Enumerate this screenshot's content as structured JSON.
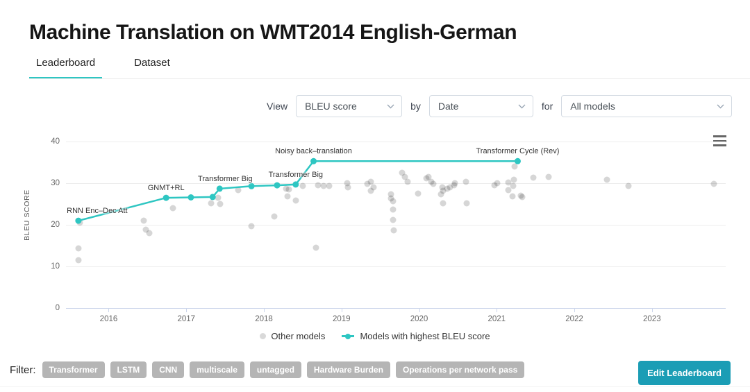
{
  "page": {
    "title": "Machine Translation on WMT2014 English-German"
  },
  "tabs": [
    {
      "label": "Leaderboard",
      "active": true
    },
    {
      "label": "Dataset",
      "active": false
    }
  ],
  "controls": {
    "view_label": "View",
    "view_value": "BLEU score",
    "by_label": "by",
    "by_value": "Date",
    "for_label": "for",
    "for_value": "All models"
  },
  "chart_data": {
    "type": "scatter",
    "title": "",
    "xlabel": "",
    "ylabel": "BLEU SCORE",
    "xlim": [
      2015.45,
      2023.95
    ],
    "ylim": [
      0,
      40
    ],
    "yticks": [
      0,
      10,
      20,
      30,
      40
    ],
    "xticks": [
      2016,
      2017,
      2018,
      2019,
      2020,
      2021,
      2022,
      2023
    ],
    "grid": true,
    "legend_position": "bottom-center",
    "menu_icon": "hamburger-icon",
    "series": [
      {
        "name": "Models with highest BLEU score",
        "type": "line+scatter",
        "color": "#2ec6c2",
        "points": [
          {
            "x": 2015.61,
            "y": 20.9,
            "label": "RNN Enc–Dec Att",
            "label_dx": 27
          },
          {
            "x": 2016.74,
            "y": 26.4,
            "label": "GNMT+RL",
            "label_dx": 0
          },
          {
            "x": 2017.06,
            "y": 26.5
          },
          {
            "x": 2017.34,
            "y": 26.6
          },
          {
            "x": 2017.43,
            "y": 28.6,
            "label": "Transformer Big",
            "label_dx": 8
          },
          {
            "x": 2017.84,
            "y": 29.2
          },
          {
            "x": 2018.17,
            "y": 29.4
          },
          {
            "x": 2018.41,
            "y": 29.6,
            "label": "Transformer Big",
            "label_dx": 0
          },
          {
            "x": 2018.64,
            "y": 35.2,
            "label": "Noisy back–translation",
            "label_dx": 0
          },
          {
            "x": 2021.27,
            "y": 35.2,
            "label": "Transformer Cycle (Rev)",
            "label_dx": 0
          }
        ]
      },
      {
        "name": "Other models",
        "type": "scatter",
        "color": "#d9d9d9",
        "points": [
          [
            2015.61,
            14.2
          ],
          [
            2015.61,
            11.5
          ],
          [
            2015.63,
            20.4
          ],
          [
            2016.45,
            21.0
          ],
          [
            2016.48,
            18.8
          ],
          [
            2016.52,
            18.0
          ],
          [
            2016.83,
            24.0
          ],
          [
            2017.32,
            25.1
          ],
          [
            2017.41,
            26.4
          ],
          [
            2017.44,
            25.0
          ],
          [
            2017.67,
            28.3
          ],
          [
            2017.84,
            19.6
          ],
          [
            2018.13,
            21.9
          ],
          [
            2018.29,
            28.6
          ],
          [
            2018.3,
            26.8
          ],
          [
            2018.32,
            28.4
          ],
          [
            2018.41,
            25.8
          ],
          [
            2018.5,
            29.2
          ],
          [
            2018.67,
            14.4
          ],
          [
            2018.7,
            29.5
          ],
          [
            2018.77,
            29.2
          ],
          [
            2018.84,
            29.2
          ],
          [
            2019.07,
            30.0
          ],
          [
            2019.08,
            28.9
          ],
          [
            2019.33,
            29.8
          ],
          [
            2019.38,
            30.3
          ],
          [
            2019.38,
            28.1
          ],
          [
            2019.41,
            28.9
          ],
          [
            2019.64,
            27.3
          ],
          [
            2019.64,
            26.3
          ],
          [
            2019.66,
            25.6
          ],
          [
            2019.66,
            23.6
          ],
          [
            2019.66,
            21.1
          ],
          [
            2019.67,
            18.6
          ],
          [
            2019.78,
            32.5
          ],
          [
            2019.82,
            31.4
          ],
          [
            2019.85,
            30.3
          ],
          [
            2019.99,
            27.5
          ],
          [
            2020.09,
            31.1
          ],
          [
            2020.12,
            31.4
          ],
          [
            2020.16,
            30.3
          ],
          [
            2020.18,
            29.8
          ],
          [
            2020.28,
            27.3
          ],
          [
            2020.3,
            28.9
          ],
          [
            2020.31,
            28.1
          ],
          [
            2020.31,
            25.1
          ],
          [
            2020.36,
            28.6
          ],
          [
            2020.4,
            28.9
          ],
          [
            2020.45,
            29.5
          ],
          [
            2020.46,
            30.0
          ],
          [
            2020.6,
            30.3
          ],
          [
            2020.61,
            25.1
          ],
          [
            2020.97,
            29.5
          ],
          [
            2021.01,
            30.0
          ],
          [
            2021.15,
            30.1
          ],
          [
            2021.15,
            28.3
          ],
          [
            2021.2,
            26.8
          ],
          [
            2021.21,
            29.2
          ],
          [
            2021.22,
            30.7
          ],
          [
            2021.23,
            33.9
          ],
          [
            2021.31,
            26.9
          ],
          [
            2021.33,
            26.6
          ],
          [
            2021.47,
            31.2
          ],
          [
            2021.67,
            31.5
          ],
          [
            2022.42,
            30.8
          ],
          [
            2022.7,
            29.2
          ],
          [
            2023.8,
            29.8
          ]
        ]
      }
    ]
  },
  "legend": {
    "other": "Other models",
    "best": "Models with highest BLEU score"
  },
  "filter": {
    "label": "Filter:",
    "tags": [
      "Transformer",
      "LSTM",
      "CNN",
      "multiscale",
      "untagged",
      "Hardware Burden",
      "Operations per network pass"
    ]
  },
  "edit_button": "Edit Leaderboard",
  "colors": {
    "accent": "#2ec6c2",
    "edit_button": "#1b9db5",
    "tag_bg": "#b5b5b5",
    "other_dot": "#d9d9d9",
    "axis_line": "#ccd6eb",
    "gridline": "#ededed"
  }
}
